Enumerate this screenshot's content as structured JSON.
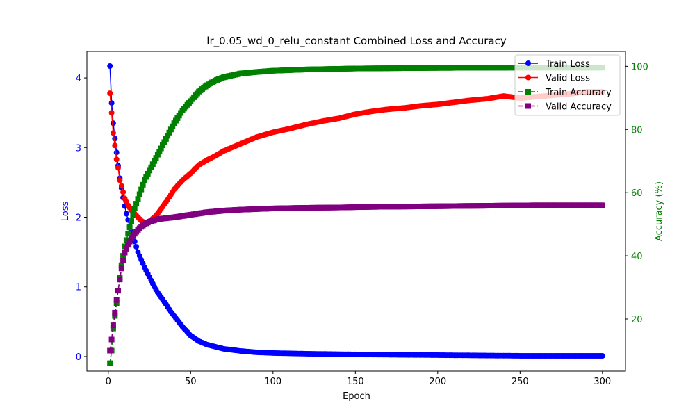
{
  "chart_data": {
    "type": "line",
    "title": "lr_0.05_wd_0_relu_constant Combined Loss and Accuracy",
    "xlabel": "Epoch",
    "ylabel_left": "Loss",
    "ylabel_right": "Accuracy (%)",
    "xlim": [
      -13,
      314
    ],
    "ylim_left": [
      -0.21,
      4.38
    ],
    "ylim_right": [
      3.5,
      104.7
    ],
    "xticks": [
      0,
      50,
      100,
      150,
      200,
      250,
      300
    ],
    "yticks_left": [
      0,
      1,
      2,
      3,
      4
    ],
    "yticks_right": [
      20,
      40,
      60,
      80,
      100
    ],
    "colors": {
      "train_loss": "#0000ff",
      "valid_loss": "#ff0000",
      "train_acc": "#008000",
      "valid_acc": "#800080",
      "left_axis": "#0000ff",
      "right_axis": "#008000"
    },
    "grid": false,
    "legend_position": "top-right",
    "series": [
      {
        "name": "Train Loss",
        "axis": "left",
        "style": "solid-circle",
        "x": [
          1,
          2,
          3,
          4,
          5,
          6,
          7,
          8,
          9,
          10,
          11,
          12,
          13,
          14,
          15,
          16,
          18,
          20,
          22,
          25,
          28,
          30,
          33,
          35,
          38,
          40,
          45,
          50,
          55,
          60,
          65,
          70,
          80,
          90,
          100,
          120,
          150,
          200,
          250,
          300
        ],
        "y": [
          4.17,
          3.64,
          3.35,
          3.13,
          2.93,
          2.74,
          2.56,
          2.42,
          2.28,
          2.16,
          2.05,
          1.96,
          1.87,
          1.79,
          1.72,
          1.65,
          1.5,
          1.39,
          1.28,
          1.14,
          1.0,
          0.92,
          0.82,
          0.75,
          0.64,
          0.58,
          0.43,
          0.3,
          0.22,
          0.17,
          0.14,
          0.11,
          0.08,
          0.06,
          0.05,
          0.04,
          0.03,
          0.02,
          0.01,
          0.01
        ]
      },
      {
        "name": "Valid Loss",
        "axis": "left",
        "style": "solid-circle",
        "x": [
          1,
          2,
          3,
          4,
          5,
          6,
          7,
          8,
          9,
          10,
          12,
          14,
          16,
          18,
          20,
          22,
          25,
          28,
          30,
          33,
          36,
          40,
          45,
          50,
          55,
          60,
          65,
          70,
          80,
          90,
          100,
          110,
          120,
          130,
          140,
          150,
          160,
          170,
          180,
          190,
          200,
          210,
          220,
          230,
          240,
          250,
          260,
          270,
          280,
          290,
          300
        ],
        "y": [
          3.78,
          3.5,
          3.21,
          3.03,
          2.83,
          2.71,
          2.53,
          2.45,
          2.36,
          2.27,
          2.17,
          2.1,
          2.05,
          2.0,
          1.95,
          1.92,
          1.94,
          2.0,
          2.05,
          2.15,
          2.25,
          2.4,
          2.53,
          2.63,
          2.75,
          2.82,
          2.88,
          2.95,
          3.05,
          3.15,
          3.22,
          3.27,
          3.33,
          3.38,
          3.42,
          3.48,
          3.52,
          3.55,
          3.57,
          3.6,
          3.62,
          3.65,
          3.68,
          3.7,
          3.74,
          3.71,
          3.73,
          3.75,
          3.77,
          3.8,
          3.8
        ]
      },
      {
        "name": "Train Accuracy",
        "axis": "right",
        "style": "dashed-square",
        "x": [
          1,
          2,
          3,
          4,
          5,
          6,
          7,
          8,
          9,
          10,
          12,
          14,
          16,
          18,
          20,
          22,
          25,
          28,
          30,
          33,
          36,
          40,
          45,
          50,
          55,
          60,
          65,
          70,
          80,
          90,
          100,
          120,
          150,
          200,
          250,
          300
        ],
        "y": [
          6,
          10,
          17,
          21,
          25,
          29,
          33,
          37,
          40,
          43,
          47,
          51,
          55,
          58,
          61,
          64,
          67,
          70,
          72,
          75,
          78,
          82,
          86,
          89,
          92,
          94,
          95.5,
          96.5,
          97.7,
          98.2,
          98.6,
          99.0,
          99.3,
          99.5,
          99.6,
          99.6
        ]
      },
      {
        "name": "Valid Accuracy",
        "axis": "right",
        "style": "dashed-square",
        "x": [
          1,
          2,
          3,
          4,
          5,
          6,
          7,
          8,
          9,
          10,
          12,
          14,
          16,
          18,
          20,
          22,
          25,
          28,
          30,
          35,
          40,
          45,
          50,
          60,
          70,
          80,
          90,
          100,
          120,
          140,
          150,
          160,
          180,
          200,
          220,
          240,
          260,
          280,
          300
        ],
        "y": [
          10,
          13.5,
          18,
          22,
          26,
          29,
          32.5,
          36,
          38.5,
          41,
          43.5,
          45.5,
          47,
          48.2,
          49.2,
          50,
          50.8,
          51.3,
          51.6,
          51.9,
          52.2,
          52.6,
          53.0,
          53.8,
          54.3,
          54.6,
          54.8,
          55.0,
          55.2,
          55.3,
          55.4,
          55.5,
          55.6,
          55.7,
          55.8,
          55.9,
          56.0,
          56.0,
          56.0
        ]
      }
    ]
  }
}
